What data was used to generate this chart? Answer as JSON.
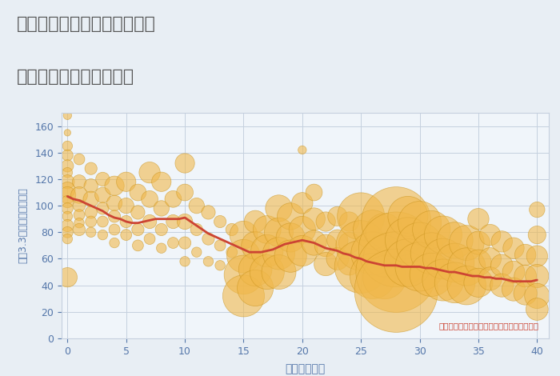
{
  "title_line1": "大阪府大阪市東淀川区豊里の",
  "title_line2": "築年数別中古戸建て価格",
  "xlabel": "築年数（年）",
  "ylabel": "坪（3.3㎡）単価（万円）",
  "annotation": "円の大きさは、取引のあった物件面積を示す",
  "fig_bg_color": "#e8eef4",
  "plot_bg_color": "#f0f5fa",
  "scatter_color": "#f0b84b",
  "scatter_alpha": 0.6,
  "scatter_edgecolor": "#c8921a",
  "scatter_edge_alpha": 0.4,
  "line_color": "#cc4433",
  "line_width": 2.0,
  "xlim": [
    -0.5,
    41
  ],
  "ylim": [
    0,
    170
  ],
  "yticks": [
    0,
    20,
    40,
    60,
    80,
    100,
    120,
    140,
    160
  ],
  "xticks": [
    0,
    5,
    10,
    15,
    20,
    25,
    30,
    35,
    40
  ],
  "tick_color": "#5577aa",
  "grid_color": "#c5d0df",
  "annotation_color": "#cc4433",
  "title_color": "#555555",
  "axis_label_color": "#5577aa",
  "scatter_points": [
    [
      0,
      168,
      15
    ],
    [
      0,
      155,
      12
    ],
    [
      0,
      145,
      18
    ],
    [
      0,
      138,
      20
    ],
    [
      0,
      130,
      22
    ],
    [
      0,
      125,
      18
    ],
    [
      0,
      118,
      25
    ],
    [
      0,
      112,
      28
    ],
    [
      0,
      108,
      30
    ],
    [
      0,
      103,
      22
    ],
    [
      0,
      98,
      20
    ],
    [
      0,
      92,
      18
    ],
    [
      0,
      85,
      22
    ],
    [
      0,
      80,
      20
    ],
    [
      0,
      75,
      18
    ],
    [
      0,
      46,
      35
    ],
    [
      1,
      135,
      20
    ],
    [
      1,
      118,
      25
    ],
    [
      1,
      108,
      30
    ],
    [
      1,
      100,
      22
    ],
    [
      1,
      93,
      20
    ],
    [
      1,
      87,
      18
    ],
    [
      1,
      82,
      22
    ],
    [
      2,
      128,
      22
    ],
    [
      2,
      115,
      25
    ],
    [
      2,
      105,
      28
    ],
    [
      2,
      95,
      22
    ],
    [
      2,
      88,
      20
    ],
    [
      2,
      80,
      18
    ],
    [
      3,
      120,
      25
    ],
    [
      3,
      108,
      28
    ],
    [
      3,
      98,
      22
    ],
    [
      3,
      88,
      20
    ],
    [
      3,
      78,
      18
    ],
    [
      4,
      115,
      35
    ],
    [
      4,
      102,
      28
    ],
    [
      4,
      92,
      22
    ],
    [
      4,
      82,
      20
    ],
    [
      4,
      72,
      18
    ],
    [
      5,
      118,
      35
    ],
    [
      5,
      100,
      28
    ],
    [
      5,
      88,
      22
    ],
    [
      5,
      78,
      20
    ],
    [
      6,
      110,
      30
    ],
    [
      6,
      95,
      25
    ],
    [
      6,
      82,
      22
    ],
    [
      6,
      70,
      20
    ],
    [
      7,
      125,
      38
    ],
    [
      7,
      105,
      30
    ],
    [
      7,
      88,
      25
    ],
    [
      7,
      75,
      20
    ],
    [
      8,
      118,
      35
    ],
    [
      8,
      98,
      28
    ],
    [
      8,
      82,
      22
    ],
    [
      8,
      68,
      18
    ],
    [
      9,
      105,
      30
    ],
    [
      9,
      88,
      25
    ],
    [
      9,
      72,
      20
    ],
    [
      10,
      132,
      35
    ],
    [
      10,
      110,
      30
    ],
    [
      10,
      88,
      28
    ],
    [
      10,
      72,
      22
    ],
    [
      10,
      58,
      18
    ],
    [
      11,
      100,
      28
    ],
    [
      11,
      82,
      22
    ],
    [
      11,
      65,
      18
    ],
    [
      12,
      95,
      25
    ],
    [
      12,
      75,
      22
    ],
    [
      12,
      58,
      18
    ],
    [
      13,
      88,
      22
    ],
    [
      13,
      70,
      20
    ],
    [
      13,
      55,
      18
    ],
    [
      14,
      82,
      22
    ],
    [
      14,
      65,
      20
    ],
    [
      15,
      78,
      50
    ],
    [
      15,
      62,
      60
    ],
    [
      15,
      48,
      70
    ],
    [
      15,
      32,
      75
    ],
    [
      16,
      88,
      40
    ],
    [
      16,
      70,
      50
    ],
    [
      16,
      52,
      60
    ],
    [
      16,
      38,
      65
    ],
    [
      17,
      82,
      50
    ],
    [
      17,
      66,
      58
    ],
    [
      17,
      50,
      62
    ],
    [
      18,
      98,
      48
    ],
    [
      18,
      80,
      52
    ],
    [
      18,
      64,
      58
    ],
    [
      18,
      50,
      62
    ],
    [
      19,
      92,
      48
    ],
    [
      19,
      76,
      52
    ],
    [
      19,
      62,
      58
    ],
    [
      20,
      142,
      15
    ],
    [
      20,
      102,
      38
    ],
    [
      20,
      82,
      48
    ],
    [
      20,
      66,
      55
    ],
    [
      21,
      110,
      30
    ],
    [
      21,
      90,
      40
    ],
    [
      21,
      72,
      45
    ],
    [
      22,
      88,
      35
    ],
    [
      22,
      70,
      40
    ],
    [
      22,
      56,
      42
    ],
    [
      23,
      92,
      35
    ],
    [
      23,
      74,
      38
    ],
    [
      23,
      60,
      40
    ],
    [
      24,
      88,
      35
    ],
    [
      24,
      72,
      38
    ],
    [
      24,
      56,
      40
    ],
    [
      25,
      92,
      85
    ],
    [
      25,
      70,
      90
    ],
    [
      25,
      54,
      95
    ],
    [
      26,
      82,
      70
    ],
    [
      26,
      64,
      78
    ],
    [
      26,
      47,
      82
    ],
    [
      27,
      80,
      68
    ],
    [
      27,
      62,
      75
    ],
    [
      27,
      46,
      78
    ],
    [
      28,
      88,
      125
    ],
    [
      28,
      67,
      135
    ],
    [
      28,
      50,
      145
    ],
    [
      28,
      36,
      150
    ],
    [
      29,
      92,
      72
    ],
    [
      29,
      74,
      82
    ],
    [
      29,
      57,
      86
    ],
    [
      30,
      87,
      78
    ],
    [
      30,
      70,
      83
    ],
    [
      30,
      54,
      88
    ],
    [
      31,
      82,
      68
    ],
    [
      31,
      64,
      75
    ],
    [
      31,
      48,
      78
    ],
    [
      32,
      78,
      68
    ],
    [
      32,
      60,
      73
    ],
    [
      32,
      44,
      75
    ],
    [
      33,
      74,
      65
    ],
    [
      33,
      57,
      70
    ],
    [
      33,
      42,
      73
    ],
    [
      34,
      72,
      63
    ],
    [
      34,
      54,
      68
    ],
    [
      34,
      40,
      70
    ],
    [
      35,
      90,
      38
    ],
    [
      35,
      72,
      42
    ],
    [
      35,
      57,
      47
    ],
    [
      35,
      42,
      52
    ],
    [
      36,
      78,
      38
    ],
    [
      36,
      60,
      40
    ],
    [
      36,
      45,
      42
    ],
    [
      37,
      73,
      38
    ],
    [
      37,
      55,
      40
    ],
    [
      37,
      40,
      42
    ],
    [
      38,
      68,
      38
    ],
    [
      38,
      50,
      40
    ],
    [
      38,
      37,
      42
    ],
    [
      39,
      63,
      38
    ],
    [
      39,
      47,
      40
    ],
    [
      39,
      34,
      42
    ],
    [
      40,
      97,
      28
    ],
    [
      40,
      78,
      32
    ],
    [
      40,
      62,
      38
    ],
    [
      40,
      47,
      42
    ],
    [
      40,
      32,
      45
    ],
    [
      40,
      22,
      40
    ]
  ],
  "trend_line": [
    [
      0,
      107
    ],
    [
      0.5,
      105
    ],
    [
      1,
      104
    ],
    [
      1.5,
      102
    ],
    [
      2,
      100
    ],
    [
      2.5,
      98
    ],
    [
      3,
      96
    ],
    [
      3.5,
      93
    ],
    [
      4,
      91
    ],
    [
      4.5,
      90
    ],
    [
      5,
      88
    ],
    [
      5.5,
      87
    ],
    [
      6,
      87
    ],
    [
      6.5,
      88
    ],
    [
      7,
      89
    ],
    [
      7.5,
      90
    ],
    [
      8,
      90
    ],
    [
      8.5,
      90
    ],
    [
      9,
      90
    ],
    [
      9.5,
      90
    ],
    [
      10,
      91
    ],
    [
      10.5,
      88
    ],
    [
      11,
      85
    ],
    [
      11.5,
      82
    ],
    [
      12,
      79
    ],
    [
      12.5,
      77
    ],
    [
      13,
      75
    ],
    [
      13.5,
      73
    ],
    [
      14,
      71
    ],
    [
      14.5,
      69
    ],
    [
      15,
      67
    ],
    [
      15.5,
      65
    ],
    [
      16,
      65
    ],
    [
      16.5,
      65
    ],
    [
      17,
      66
    ],
    [
      17.5,
      67
    ],
    [
      18,
      69
    ],
    [
      18.5,
      71
    ],
    [
      19,
      72
    ],
    [
      19.5,
      73
    ],
    [
      20,
      74
    ],
    [
      20.5,
      73
    ],
    [
      21,
      72
    ],
    [
      21.5,
      70
    ],
    [
      22,
      68
    ],
    [
      22.5,
      67
    ],
    [
      23,
      66
    ],
    [
      23.5,
      64
    ],
    [
      24,
      63
    ],
    [
      24.5,
      61
    ],
    [
      25,
      60
    ],
    [
      25.5,
      58
    ],
    [
      26,
      57
    ],
    [
      26.5,
      56
    ],
    [
      27,
      55
    ],
    [
      27.5,
      55
    ],
    [
      28,
      55
    ],
    [
      28.5,
      54
    ],
    [
      29,
      54
    ],
    [
      29.5,
      54
    ],
    [
      30,
      54
    ],
    [
      30.5,
      53
    ],
    [
      31,
      53
    ],
    [
      31.5,
      52
    ],
    [
      32,
      51
    ],
    [
      32.5,
      50
    ],
    [
      33,
      50
    ],
    [
      33.5,
      49
    ],
    [
      34,
      48
    ],
    [
      34.5,
      47
    ],
    [
      35,
      47
    ],
    [
      35.5,
      46
    ],
    [
      36,
      46
    ],
    [
      36.5,
      45
    ],
    [
      37,
      45
    ],
    [
      37.5,
      44
    ],
    [
      38,
      43
    ],
    [
      38.5,
      43
    ],
    [
      39,
      43
    ],
    [
      39.5,
      43
    ],
    [
      40,
      44
    ]
  ]
}
